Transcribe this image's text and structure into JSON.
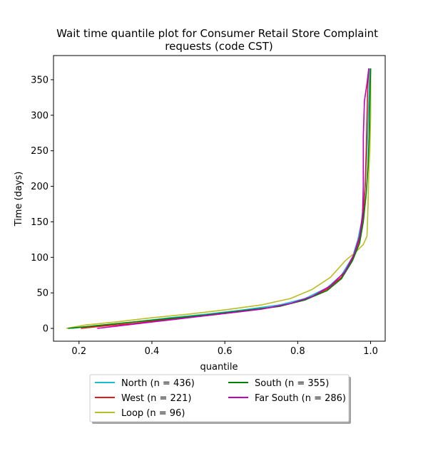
{
  "chart_data": {
    "type": "line",
    "title": "Wait time quantile plot for Consumer Retail Store Complaint\nrequests (code CST)",
    "xlabel": "quantile",
    "ylabel": "Time (days)",
    "xlim": [
      0.13,
      1.04
    ],
    "ylim": [
      -18,
      384
    ],
    "xticks": [
      0.2,
      0.4,
      0.6,
      0.8,
      1.0
    ],
    "xtick_labels": [
      "0.2",
      "0.4",
      "0.6",
      "0.8",
      "1.0"
    ],
    "yticks": [
      0,
      50,
      100,
      150,
      200,
      250,
      300,
      350
    ],
    "ytick_labels": [
      "0",
      "50",
      "100",
      "150",
      "200",
      "250",
      "300",
      "350"
    ],
    "grid": false,
    "legend_position": "below plot, 2 columns",
    "series": [
      {
        "name": "North (n = 436)",
        "color": "#17becf",
        "x": [
          0.18,
          0.25,
          0.35,
          0.45,
          0.55,
          0.65,
          0.75,
          0.82,
          0.88,
          0.92,
          0.95,
          0.965,
          0.975,
          0.985,
          0.99,
          0.995,
          0.998
        ],
        "y": [
          0,
          4,
          9,
          15,
          20,
          26,
          33,
          42,
          57,
          75,
          100,
          125,
          150,
          200,
          250,
          320,
          366
        ]
      },
      {
        "name": "West (n = 221)",
        "color": "#e41a1c",
        "x": [
          0.205,
          0.26,
          0.35,
          0.45,
          0.55,
          0.65,
          0.75,
          0.82,
          0.88,
          0.92,
          0.95,
          0.97,
          0.98,
          0.985,
          0.988,
          0.99,
          0.992,
          0.995
        ],
        "y": [
          0,
          3,
          7,
          13,
          18,
          24,
          31,
          40,
          55,
          72,
          98,
          125,
          160,
          200,
          250,
          300,
          340,
          366
        ]
      },
      {
        "name": "Loop (n = 96)",
        "color": "#bcbd22",
        "x": [
          0.165,
          0.22,
          0.3,
          0.4,
          0.5,
          0.6,
          0.7,
          0.78,
          0.84,
          0.89,
          0.93,
          0.96,
          0.98,
          0.99,
          0.993,
          0.995,
          0.998,
          1.0,
          1.0
        ],
        "y": [
          0,
          5,
          9,
          15,
          20,
          26,
          33,
          42,
          55,
          72,
          95,
          108,
          118,
          130,
          175,
          220,
          250,
          300,
          366
        ]
      },
      {
        "name": "South (n = 355)",
        "color": "#008000",
        "x": [
          0.17,
          0.25,
          0.35,
          0.45,
          0.55,
          0.65,
          0.75,
          0.82,
          0.88,
          0.92,
          0.95,
          0.97,
          0.98,
          0.988,
          0.993,
          0.996,
          0.998,
          1.0
        ],
        "y": [
          0,
          4,
          9,
          14,
          19,
          25,
          31,
          40,
          53,
          70,
          95,
          120,
          150,
          190,
          230,
          270,
          320,
          366
        ]
      },
      {
        "name": "Far South (n = 286)",
        "color": "#bf00bf",
        "x": [
          0.25,
          0.3,
          0.4,
          0.5,
          0.6,
          0.7,
          0.78,
          0.84,
          0.89,
          0.93,
          0.955,
          0.97,
          0.978,
          0.98,
          0.98,
          0.983,
          0.99,
          0.995
        ],
        "y": [
          0,
          3,
          9,
          15,
          21,
          27,
          35,
          45,
          60,
          80,
          105,
          130,
          160,
          200,
          270,
          320,
          345,
          366
        ]
      }
    ]
  }
}
